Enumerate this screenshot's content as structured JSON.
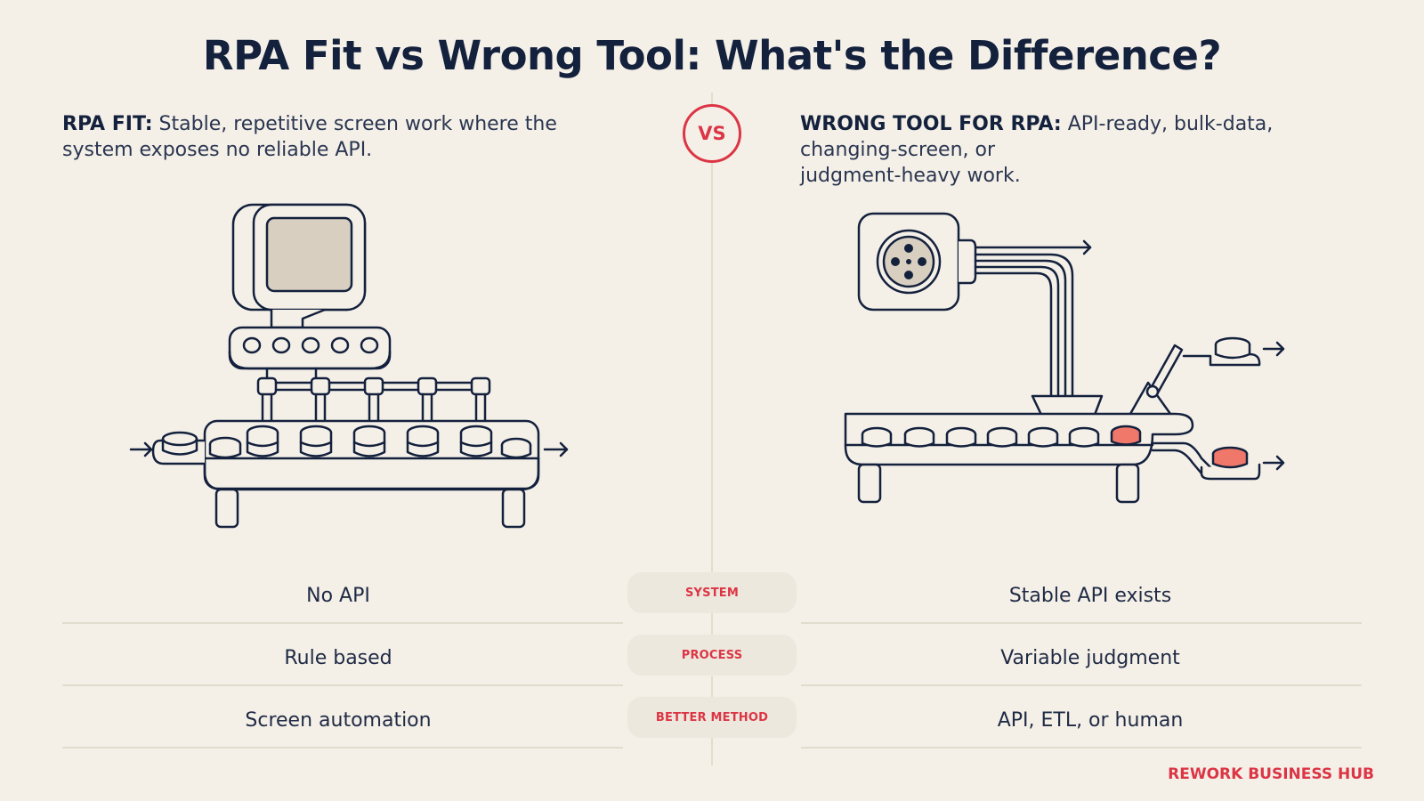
{
  "title": "RPA Fit vs Wrong Tool: What's the Difference?",
  "vs_label": "VS",
  "left": {
    "heading": "RPA FIT:",
    "description": "Stable, repetitive screen work where the system exposes no reliable API."
  },
  "right": {
    "heading": "WRONG TOOL FOR RPA:",
    "description_line1": "API-ready, bulk-data,",
    "description_line2": "changing-screen, or",
    "description_line3": "judgment-heavy work."
  },
  "comparison_rows": [
    {
      "category": "SYSTEM",
      "left": "No API",
      "right": "Stable API exists"
    },
    {
      "category": "PROCESS",
      "left": "Rule based",
      "right": "Variable judgment"
    },
    {
      "category": "BETTER METHOD",
      "left": "Screen automation",
      "right": "API, ETL, or human"
    }
  ],
  "brand": "REWORK BUSINESS HUB",
  "colors": {
    "background": "#f4f0e8",
    "navy": "#14213d",
    "accent_red": "#dc3545",
    "highlight_coral": "#f0786a",
    "screen_tan": "#d8cfc0"
  }
}
